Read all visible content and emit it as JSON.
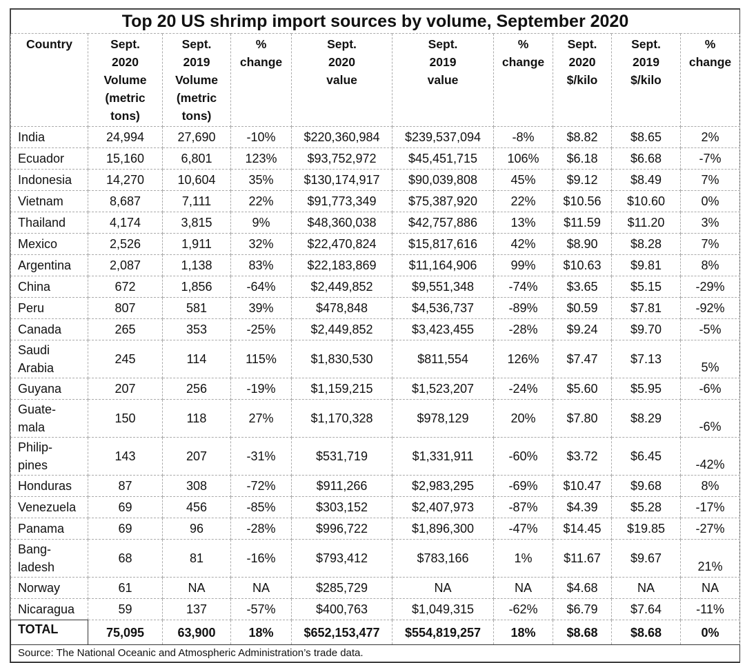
{
  "title": "Top 20 US shrimp import sources by volume, September 2020",
  "headers": [
    "Country",
    "Sept.\n2020\nVolume\n(metric\ntons)",
    "Sept.\n2019\nVolume\n(metric\ntons)",
    "%\nchange",
    "Sept.\n2020\nvalue",
    "Sept.\n2019\nvalue",
    "%\nchange",
    "Sept.\n2020\n$/kilo",
    "Sept.\n2019\n$/kilo",
    "%\nchange"
  ],
  "rows": [
    [
      "India",
      "24,994",
      "27,690",
      "-10%",
      "$220,360,984",
      "$239,537,094",
      "-8%",
      "$8.82",
      "$8.65",
      "2%"
    ],
    [
      "Ecuador",
      "15,160",
      "6,801",
      "123%",
      "$93,752,972",
      "$45,451,715",
      "106%",
      "$6.18",
      "$6.68",
      "-7%"
    ],
    [
      "Indonesia",
      "14,270",
      "10,604",
      "35%",
      "$130,174,917",
      "$90,039,808",
      "45%",
      "$9.12",
      "$8.49",
      "7%"
    ],
    [
      "Vietnam",
      "8,687",
      "7,111",
      "22%",
      "$91,773,349",
      "$75,387,920",
      "22%",
      "$10.56",
      "$10.60",
      "0%"
    ],
    [
      "Thailand",
      "4,174",
      "3,815",
      "9%",
      "$48,360,038",
      "$42,757,886",
      "13%",
      "$11.59",
      "$11.20",
      "3%"
    ],
    [
      "Mexico",
      "2,526",
      "1,911",
      "32%",
      "$22,470,824",
      "$15,817,616",
      "42%",
      "$8.90",
      "$8.28",
      "7%"
    ],
    [
      "Argentina",
      "2,087",
      "1,138",
      "83%",
      "$22,183,869",
      "$11,164,906",
      "99%",
      "$10.63",
      "$9.81",
      "8%"
    ],
    [
      "China",
      "672",
      "1,856",
      "-64%",
      "$2,449,852",
      "$9,551,348",
      "-74%",
      "$3.65",
      "$5.15",
      "-29%"
    ],
    [
      "Peru",
      "807",
      "581",
      "39%",
      "$478,848",
      "$4,536,737",
      "-89%",
      "$0.59",
      "$7.81",
      "-92%"
    ],
    [
      "Canada",
      "265",
      "353",
      "-25%",
      "$2,449,852",
      "$3,423,455",
      "-28%",
      "$9.24",
      "$9.70",
      "-5%"
    ],
    [
      "Saudi\nArabia",
      "245",
      "114",
      "115%",
      "$1,830,530",
      "$811,554",
      "126%",
      "$7.47",
      "$7.13",
      "5%"
    ],
    [
      "Guyana",
      "207",
      "256",
      "-19%",
      "$1,159,215",
      "$1,523,207",
      "-24%",
      "$5.60",
      "$5.95",
      "-6%"
    ],
    [
      "Guate-\nmala",
      "150",
      "118",
      "27%",
      "$1,170,328",
      "$978,129",
      "20%",
      "$7.80",
      "$8.29",
      "-6%"
    ],
    [
      "Philip-\npines",
      "143",
      "207",
      "-31%",
      "$531,719",
      "$1,331,911",
      "-60%",
      "$3.72",
      "$6.45",
      "-42%"
    ],
    [
      "Honduras",
      "87",
      "308",
      "-72%",
      "$911,266",
      "$2,983,295",
      "-69%",
      "$10.47",
      "$9.68",
      "8%"
    ],
    [
      "Venezuela",
      "69",
      "456",
      "-85%",
      "$303,152",
      "$2,407,973",
      "-87%",
      "$4.39",
      "$5.28",
      "-17%"
    ],
    [
      "Panama",
      "69",
      "96",
      "-28%",
      "$996,722",
      "$1,896,300",
      "-47%",
      "$14.45",
      "$19.85",
      "-27%"
    ],
    [
      "Bang-\nladesh",
      "68",
      "81",
      "-16%",
      "$793,412",
      "$783,166",
      "1%",
      "$11.67",
      "$9.67",
      "21%"
    ],
    [
      "Norway",
      "61",
      "NA",
      "NA",
      "$285,729",
      "NA",
      "NA",
      "$4.68",
      "NA",
      "NA"
    ],
    [
      "Nicaragua",
      "59",
      "137",
      "-57%",
      "$400,763",
      "$1,049,315",
      "-62%",
      "$6.79",
      "$7.64",
      "-11%"
    ]
  ],
  "total": [
    "TOTAL",
    "75,095",
    "63,900",
    "18%",
    "$652,153,477",
    "$554,819,257",
    "18%",
    "$8.68",
    "$8.68",
    "0%"
  ],
  "source": "Source: The National Oceanic and Atmospheric Administration’s trade data."
}
